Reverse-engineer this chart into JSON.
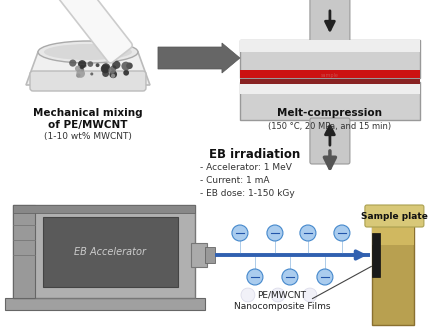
{
  "bg_color": "#ffffff",
  "arrow_color": "#555555",
  "blue_color": "#3060b0",
  "red_color": "#cc1111",
  "eb_text": "EB Accelerator",
  "eb_text_color": "#cccccc",
  "label1_bold": "Mechanical mixing\nof PE/MWCNT",
  "label1_normal": "(1-10 wt% MWCNT)",
  "label2_bold": "Melt-compression",
  "label2_normal": "(150 °C, 20 MPa, and 15 min)",
  "label3_bold": "EB irradiation",
  "label3_bullets": "- Accelerator: 1 MeV\n- Current: 1 mA\n- EB dose: 1-150 kGy",
  "label4_line1": "PE/MWCNT",
  "label4_line2": "Nanocomposite Films",
  "label5_bold": "Sample plate",
  "figsize": [
    4.38,
    3.35
  ],
  "dpi": 100
}
